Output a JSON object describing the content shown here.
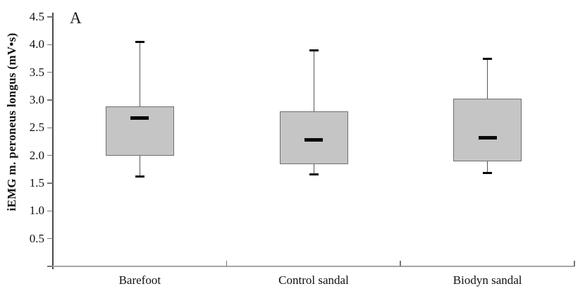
{
  "figure": {
    "panel_label": "A",
    "background": "#ffffff"
  },
  "chart_data": {
    "type": "boxplot",
    "title": "",
    "xlabel": "",
    "ylabel": "iEMG m. peroneus longus (mV•s)",
    "categories": [
      "Barefoot",
      "Control sandal",
      "Biodyn sandal"
    ],
    "series": [
      {
        "name": "iEMG m. peroneus longus",
        "boxes": [
          {
            "category": "Barefoot",
            "whisker_low": 1.62,
            "q1": 2.0,
            "median": 2.68,
            "q3": 2.89,
            "whisker_high": 4.05
          },
          {
            "category": "Control sandal",
            "whisker_low": 1.66,
            "q1": 1.84,
            "median": 2.28,
            "q3": 2.8,
            "whisker_high": 3.89
          },
          {
            "category": "Biodyn sandal",
            "whisker_low": 1.68,
            "q1": 1.9,
            "median": 2.32,
            "q3": 3.02,
            "whisker_high": 3.74
          }
        ]
      }
    ],
    "y_axis": {
      "min": 0,
      "max": 4.5,
      "tick_step": 0.5,
      "tick_labels": [
        "0.5",
        "1.0",
        "1.5",
        "2.0",
        "2.5",
        "3.0",
        "3.5",
        "4.0",
        "4.5"
      ]
    },
    "x_axis": {
      "tick_labels": [
        "Barefoot",
        "Control sandal",
        "Biodyn sandal"
      ]
    },
    "grid": false,
    "legend": "none",
    "colors": {
      "box_fill": "#c5c5c5",
      "box_border": "#6f6f6f",
      "median": "#0a0a0a",
      "whisker_line": "#585858",
      "whisker_cap": "#0a0a0a",
      "y_axis_line": "#4a4a4a",
      "x_axis_line": "#a6a6a6",
      "tick": "#777777",
      "text": "#111111"
    }
  }
}
